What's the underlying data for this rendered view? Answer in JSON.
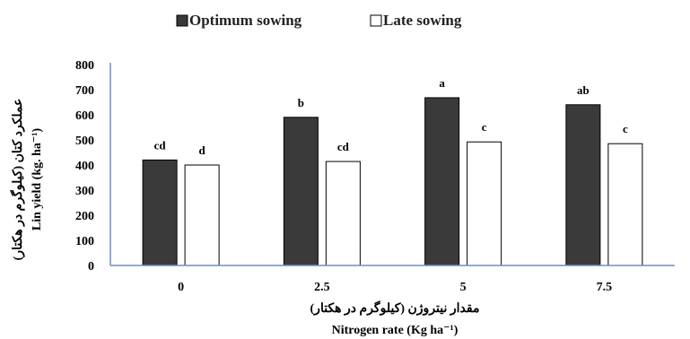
{
  "chart_data": {
    "type": "bar",
    "categories": [
      "0",
      "2.5",
      "5",
      "7.5"
    ],
    "series": [
      {
        "name": "Optimum sowing",
        "values": [
          420,
          590,
          668,
          640
        ],
        "color": "#3a3a3a",
        "significance": [
          "cd",
          "b",
          "a",
          "ab"
        ]
      },
      {
        "name": "Late sowing",
        "values": [
          400,
          414,
          492,
          485
        ],
        "color": "#ffffff",
        "significance": [
          "d",
          "cd",
          "c",
          "c"
        ]
      }
    ],
    "ylim": [
      0,
      800
    ],
    "yticks": [
      "0",
      "100",
      "200",
      "300",
      "400",
      "500",
      "600",
      "700",
      "800"
    ],
    "ylabel_fa": "عملکرد کتان (کیلوگرم در هکتار)",
    "ylabel_en": "Lin yield (kg. ha⁻¹)",
    "xlabel_fa": "مقدار نیتروژن (کیلوگرم در هکتار)",
    "xlabel_en": "Nitrogen rate (Kg ha⁻¹)",
    "legend_position": "top"
  }
}
